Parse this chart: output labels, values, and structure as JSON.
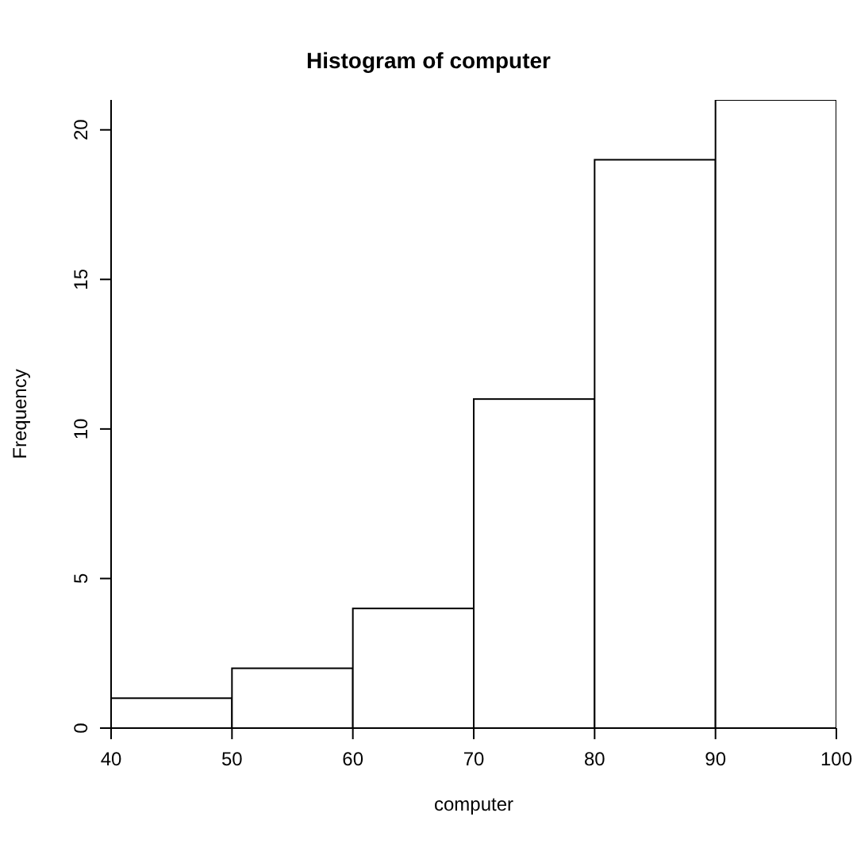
{
  "chart_data": {
    "type": "histogram",
    "title": "Histogram of computer",
    "xlabel": "computer",
    "ylabel": "Frequency",
    "bins": [
      40,
      50,
      60,
      70,
      80,
      90,
      100
    ],
    "values": [
      1,
      2,
      4,
      11,
      19,
      21
    ],
    "color": "#ffffff",
    "xlim": [
      40,
      100
    ],
    "xticks": [
      40,
      50,
      60,
      70,
      80,
      90,
      100
    ],
    "ylim": [
      0,
      21
    ],
    "yticks": [
      0,
      5,
      10,
      15,
      20
    ]
  }
}
